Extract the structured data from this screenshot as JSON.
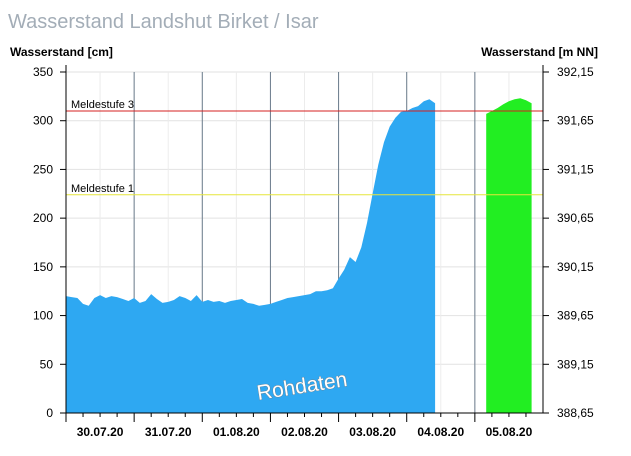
{
  "chart_data": {
    "type": "area",
    "title": "Wasserstand Landshut Birket / Isar",
    "ylabel": "Wasserstand [cm]",
    "ylabel_right": "Wasserstand [m NN]",
    "ylim": [
      0,
      350
    ],
    "y_ticks": [
      0,
      50,
      100,
      150,
      200,
      250,
      300,
      350
    ],
    "y_right_ticks": [
      "388,65",
      "389,15",
      "389,65",
      "390,15",
      "390,65",
      "391,15",
      "391,65",
      "392,15"
    ],
    "x_day_labels": [
      "30.07.20",
      "31.07.20",
      "01.08.20",
      "02.08.20",
      "03.08.20",
      "04.08.20",
      "05.08.20"
    ],
    "x_day_start": "30.07.20 00:00",
    "x_day_end": "05.08.20 24:00",
    "grid": true,
    "thresholds": [
      {
        "label": "Meldestufe 3",
        "value": 310,
        "color": "#d42020"
      },
      {
        "label": "Meldestufe 1",
        "value": 224,
        "color": "#e6e63c"
      }
    ],
    "watermark": "Rohdaten",
    "series": [
      {
        "color": "#2ea8f2",
        "x_hours": [
          0,
          2,
          4,
          6,
          8,
          10,
          12,
          14,
          16,
          18,
          20,
          22,
          24,
          26,
          28,
          30,
          32,
          34,
          36,
          38,
          40,
          42,
          44,
          46,
          48,
          50,
          52,
          54,
          56,
          58,
          60,
          62,
          64,
          66,
          68,
          70,
          72,
          74,
          76,
          78,
          80,
          82,
          84,
          86,
          88,
          90,
          92,
          94,
          96,
          98,
          100,
          102,
          104,
          106,
          108,
          110,
          112,
          114,
          116,
          118,
          120,
          122,
          124,
          126,
          128,
          130,
          132,
          134,
          136,
          138,
          140,
          142,
          144,
          146,
          148,
          150,
          152,
          154,
          156,
          158
        ],
        "values": [
          120,
          119,
          118,
          112,
          110,
          118,
          121,
          118,
          120,
          119,
          117,
          115,
          118,
          113,
          115,
          122,
          117,
          113,
          114,
          116,
          120,
          118,
          115,
          121,
          114,
          116,
          114,
          115,
          113,
          115,
          116,
          117,
          113,
          112,
          110,
          111,
          112,
          114,
          116,
          118,
          119,
          120,
          121,
          122,
          125,
          125,
          126,
          128,
          138,
          147,
          160,
          155,
          170,
          195,
          225,
          255,
          278,
          294,
          303,
          309,
          310,
          313,
          315,
          320,
          322,
          318,
          null,
          null,
          null,
          null,
          null,
          null,
          null,
          null,
          null,
          null,
          null,
          null,
          null,
          null
        ]
      },
      {
        "color": "#22ee22",
        "x_hours": [
          148,
          150,
          152,
          154,
          156,
          158,
          160,
          162,
          164
        ],
        "values": [
          307,
          310,
          313,
          317,
          320,
          322,
          323,
          321,
          318
        ]
      }
    ]
  }
}
